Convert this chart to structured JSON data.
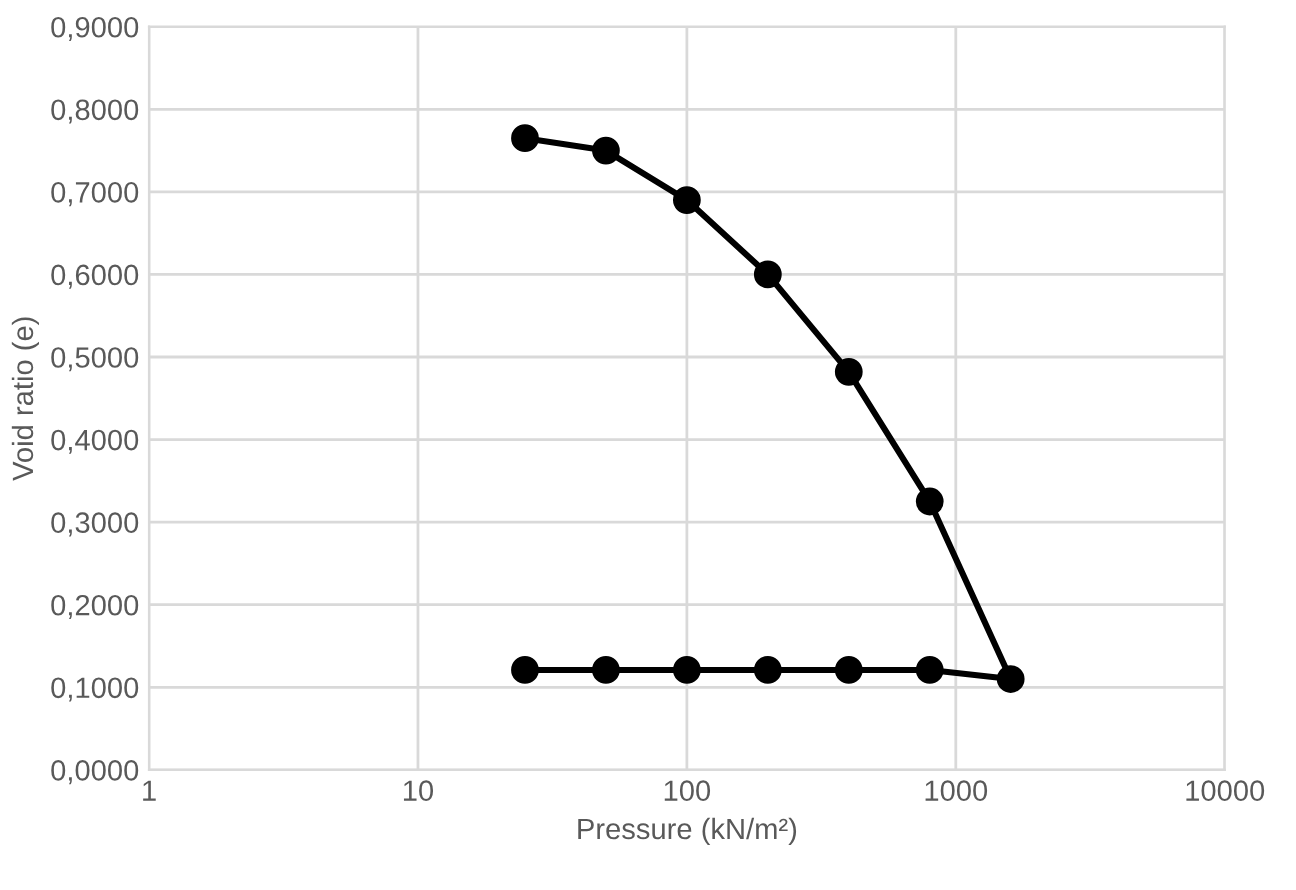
{
  "chart_data": {
    "type": "line",
    "xlabel": "Pressure (kN/m²)",
    "ylabel": "Void ratio (e)",
    "x": [
      25,
      50,
      100,
      200,
      400,
      800,
      1600,
      800,
      400,
      200,
      100,
      50,
      25
    ],
    "series": [
      {
        "color": "#000000",
        "values": [
          0.765,
          0.75,
          0.69,
          0.6,
          0.482,
          0.325,
          0.11,
          0.121,
          0.121,
          0.121,
          0.121,
          0.121,
          0.121
        ]
      }
    ],
    "log": "x",
    "xlim": [
      1,
      10000
    ],
    "xticks": [
      1,
      10,
      100,
      1000,
      10000
    ],
    "ylim": [
      0,
      0.9
    ],
    "yticks": [
      {
        "value": 0,
        "label": "0,0000"
      },
      {
        "value": 0.1,
        "label": "0,1000"
      },
      {
        "value": 0.2,
        "label": "0,2000"
      },
      {
        "value": 0.3,
        "label": "0,3000"
      },
      {
        "value": 0.4,
        "label": "0,4000"
      },
      {
        "value": 0.5,
        "label": "0,5000"
      },
      {
        "value": 0.6,
        "label": "0,6000"
      },
      {
        "value": 0.7,
        "label": "0,7000"
      },
      {
        "value": 0.8,
        "label": "0,8000"
      },
      {
        "value": 0.9,
        "label": "0,9000"
      }
    ],
    "grid": true,
    "marker": "circle",
    "line_style": "solid"
  }
}
